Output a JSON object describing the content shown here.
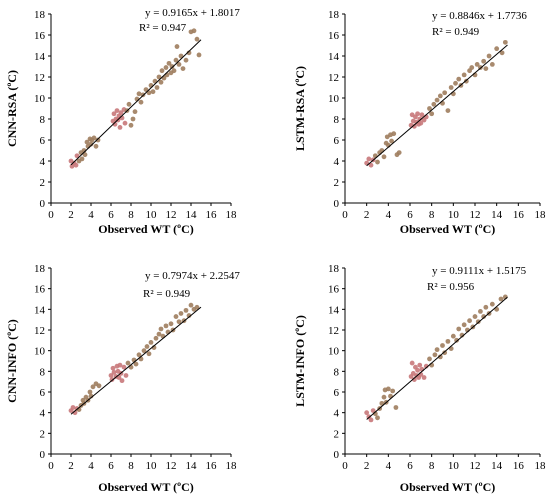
{
  "chart_data": [
    {
      "type": "scatter",
      "ylabel": "CNN-RSA (ºC)",
      "xlabel": "Observed WT (ºC)",
      "equation": "y = 0.9165x + 1.8017",
      "r2": "R² = 0.947",
      "slope": 0.9165,
      "intercept": 1.8017,
      "xlim": [
        0,
        18
      ],
      "ylim": [
        0,
        18
      ],
      "x_ticks": [
        "0",
        "2",
        "4",
        "6",
        "8",
        "10",
        "12",
        "14",
        "16",
        "18"
      ],
      "y_ticks": [
        "0",
        "2",
        "4",
        "6",
        "8",
        "10",
        "12",
        "14",
        "16",
        "18"
      ],
      "points": [
        [
          2.0,
          4.0
        ],
        [
          2.1,
          3.5
        ],
        [
          2.3,
          3.8
        ],
        [
          2.5,
          3.6
        ],
        [
          2.6,
          4.5
        ],
        [
          2.8,
          4.0
        ],
        [
          3.0,
          4.8
        ],
        [
          3.1,
          4.2
        ],
        [
          3.3,
          5.0
        ],
        [
          3.4,
          4.6
        ],
        [
          3.6,
          5.8
        ],
        [
          3.7,
          5.4
        ],
        [
          3.9,
          6.1
        ],
        [
          4.0,
          5.6
        ],
        [
          4.1,
          6.0
        ],
        [
          4.3,
          6.2
        ],
        [
          4.5,
          5.4
        ],
        [
          4.7,
          6.0
        ],
        [
          6.2,
          7.8
        ],
        [
          6.3,
          8.5
        ],
        [
          6.4,
          7.5
        ],
        [
          6.5,
          8.0
        ],
        [
          6.6,
          8.8
        ],
        [
          6.7,
          7.9
        ],
        [
          6.8,
          8.3
        ],
        [
          6.9,
          7.2
        ],
        [
          7.0,
          8.6
        ],
        [
          7.1,
          8.1
        ],
        [
          7.3,
          8.9
        ],
        [
          7.4,
          7.6
        ],
        [
          7.6,
          8.8
        ],
        [
          7.8,
          9.4
        ],
        [
          8.0,
          7.4
        ],
        [
          8.2,
          8.0
        ],
        [
          8.4,
          8.7
        ],
        [
          8.6,
          9.9
        ],
        [
          8.8,
          10.4
        ],
        [
          9.0,
          9.6
        ],
        [
          9.2,
          10.3
        ],
        [
          9.5,
          10.8
        ],
        [
          9.8,
          10.5
        ],
        [
          10.0,
          11.2
        ],
        [
          10.2,
          10.6
        ],
        [
          10.4,
          11.6
        ],
        [
          10.6,
          11.0
        ],
        [
          10.8,
          12.0
        ],
        [
          11.0,
          11.5
        ],
        [
          11.1,
          12.6
        ],
        [
          11.3,
          11.9
        ],
        [
          11.5,
          12.9
        ],
        [
          11.6,
          12.2
        ],
        [
          11.8,
          13.3
        ],
        [
          12.0,
          12.4
        ],
        [
          12.1,
          13.0
        ],
        [
          12.3,
          12.6
        ],
        [
          12.5,
          13.6
        ],
        [
          12.6,
          14.9
        ],
        [
          12.8,
          13.2
        ],
        [
          13.0,
          14.0
        ],
        [
          13.2,
          12.8
        ],
        [
          13.5,
          13.6
        ],
        [
          13.8,
          14.3
        ],
        [
          14.0,
          16.3
        ],
        [
          14.3,
          16.4
        ],
        [
          14.6,
          15.6
        ],
        [
          14.8,
          14.1
        ]
      ]
    },
    {
      "type": "scatter",
      "ylabel": "LSTM-RSA (ºC)",
      "xlabel": "Observed WT (ºC)",
      "equation": "y = 0.8846x + 1.7736",
      "r2": "R² = 0.949",
      "slope": 0.8846,
      "intercept": 1.7736,
      "xlim": [
        0,
        18
      ],
      "ylim": [
        0,
        18
      ],
      "x_ticks": [
        "0",
        "2",
        "4",
        "6",
        "8",
        "10",
        "12",
        "14",
        "16",
        "18"
      ],
      "y_ticks": [
        "0",
        "2",
        "4",
        "6",
        "8",
        "10",
        "12",
        "14",
        "16",
        "18"
      ],
      "points": [
        [
          2.0,
          3.8
        ],
        [
          2.2,
          4.2
        ],
        [
          2.4,
          3.6
        ],
        [
          2.6,
          4.1
        ],
        [
          2.8,
          4.5
        ],
        [
          3.0,
          3.9
        ],
        [
          3.2,
          4.8
        ],
        [
          3.4,
          5.0
        ],
        [
          3.6,
          4.4
        ],
        [
          3.8,
          5.7
        ],
        [
          3.9,
          6.3
        ],
        [
          4.0,
          5.5
        ],
        [
          4.2,
          6.5
        ],
        [
          4.3,
          5.9
        ],
        [
          4.5,
          6.6
        ],
        [
          4.8,
          4.6
        ],
        [
          5.0,
          4.8
        ],
        [
          6.1,
          7.4
        ],
        [
          6.2,
          8.4
        ],
        [
          6.3,
          7.8
        ],
        [
          6.4,
          7.3
        ],
        [
          6.5,
          8.2
        ],
        [
          6.6,
          7.7
        ],
        [
          6.7,
          8.5
        ],
        [
          6.8,
          7.5
        ],
        [
          6.9,
          8.0
        ],
        [
          7.0,
          7.6
        ],
        [
          7.1,
          8.4
        ],
        [
          7.3,
          7.9
        ],
        [
          7.5,
          8.2
        ],
        [
          7.8,
          9.0
        ],
        [
          8.0,
          8.5
        ],
        [
          8.2,
          9.4
        ],
        [
          8.5,
          9.8
        ],
        [
          8.8,
          10.2
        ],
        [
          9.0,
          9.5
        ],
        [
          9.2,
          10.5
        ],
        [
          9.5,
          8.8
        ],
        [
          9.8,
          11.0
        ],
        [
          10.0,
          10.4
        ],
        [
          10.2,
          11.4
        ],
        [
          10.5,
          11.8
        ],
        [
          10.7,
          11.2
        ],
        [
          11.0,
          12.2
        ],
        [
          11.2,
          11.6
        ],
        [
          11.5,
          12.6
        ],
        [
          11.7,
          12.9
        ],
        [
          12.0,
          12.2
        ],
        [
          12.2,
          13.2
        ],
        [
          12.5,
          12.9
        ],
        [
          12.8,
          13.5
        ],
        [
          13.0,
          12.8
        ],
        [
          13.3,
          14.0
        ],
        [
          13.6,
          13.2
        ],
        [
          14.0,
          14.7
        ],
        [
          14.5,
          14.3
        ],
        [
          14.8,
          15.3
        ]
      ]
    },
    {
      "type": "scatter",
      "ylabel": "CNN-INFO (ºC)",
      "xlabel": "Observed WT (ºC)",
      "equation": "y = 0.7974x + 2.2547",
      "r2": "R² = 0.949",
      "slope": 0.7974,
      "intercept": 2.2547,
      "xlim": [
        0,
        18
      ],
      "ylim": [
        0,
        18
      ],
      "x_ticks": [
        "0",
        "2",
        "4",
        "6",
        "8",
        "10",
        "12",
        "14",
        "16",
        "18"
      ],
      "y_ticks": [
        "0",
        "2",
        "4",
        "6",
        "8",
        "10",
        "12",
        "14",
        "16",
        "18"
      ],
      "points": [
        [
          2.0,
          4.2
        ],
        [
          2.2,
          4.5
        ],
        [
          2.4,
          4.0
        ],
        [
          2.6,
          4.4
        ],
        [
          2.8,
          4.3
        ],
        [
          3.0,
          4.7
        ],
        [
          3.2,
          5.2
        ],
        [
          3.3,
          4.9
        ],
        [
          3.5,
          5.5
        ],
        [
          3.7,
          5.2
        ],
        [
          3.9,
          6.0
        ],
        [
          4.0,
          5.6
        ],
        [
          4.2,
          6.5
        ],
        [
          4.5,
          6.8
        ],
        [
          4.8,
          6.6
        ],
        [
          6.0,
          7.6
        ],
        [
          6.1,
          7.2
        ],
        [
          6.2,
          8.3
        ],
        [
          6.3,
          7.9
        ],
        [
          6.5,
          7.5
        ],
        [
          6.6,
          8.5
        ],
        [
          6.7,
          8.0
        ],
        [
          6.8,
          7.4
        ],
        [
          6.9,
          8.6
        ],
        [
          7.0,
          7.8
        ],
        [
          7.1,
          7.1
        ],
        [
          7.3,
          8.4
        ],
        [
          7.5,
          7.6
        ],
        [
          7.7,
          8.8
        ],
        [
          8.0,
          8.4
        ],
        [
          8.3,
          9.1
        ],
        [
          8.5,
          8.7
        ],
        [
          8.8,
          9.6
        ],
        [
          9.0,
          9.2
        ],
        [
          9.3,
          10.0
        ],
        [
          9.6,
          10.4
        ],
        [
          9.8,
          9.7
        ],
        [
          10.0,
          10.8
        ],
        [
          10.3,
          10.3
        ],
        [
          10.5,
          11.2
        ],
        [
          10.8,
          11.6
        ],
        [
          11.0,
          12.1
        ],
        [
          11.2,
          11.4
        ],
        [
          11.5,
          12.4
        ],
        [
          11.7,
          11.8
        ],
        [
          12.0,
          12.6
        ],
        [
          12.2,
          12.0
        ],
        [
          12.5,
          13.3
        ],
        [
          12.8,
          12.8
        ],
        [
          13.0,
          13.6
        ],
        [
          13.3,
          12.9
        ],
        [
          13.5,
          13.9
        ],
        [
          13.8,
          13.4
        ],
        [
          14.0,
          14.4
        ],
        [
          14.3,
          14.0
        ],
        [
          14.6,
          14.2
        ]
      ]
    },
    {
      "type": "scatter",
      "ylabel": "LSTM-INFO (ºC)",
      "xlabel": "Observed WT (ºC)",
      "equation": "y = 0.9111x + 1.5175",
      "r2": "R² = 0.956",
      "slope": 0.9111,
      "intercept": 1.5175,
      "xlim": [
        0,
        18
      ],
      "ylim": [
        0,
        18
      ],
      "x_ticks": [
        "0",
        "2",
        "4",
        "6",
        "8",
        "10",
        "12",
        "14",
        "16",
        "18"
      ],
      "y_ticks": [
        "0",
        "2",
        "4",
        "6",
        "8",
        "10",
        "12",
        "14",
        "16",
        "18"
      ],
      "points": [
        [
          2.0,
          4.0
        ],
        [
          2.2,
          3.6
        ],
        [
          2.4,
          3.3
        ],
        [
          2.6,
          4.2
        ],
        [
          2.8,
          3.9
        ],
        [
          3.0,
          3.5
        ],
        [
          3.2,
          4.4
        ],
        [
          3.4,
          4.9
        ],
        [
          3.6,
          5.5
        ],
        [
          3.7,
          6.2
        ],
        [
          3.8,
          5.0
        ],
        [
          4.0,
          6.3
        ],
        [
          4.2,
          5.6
        ],
        [
          4.4,
          6.1
        ],
        [
          4.7,
          4.5
        ],
        [
          6.1,
          7.5
        ],
        [
          6.2,
          8.8
        ],
        [
          6.3,
          7.8
        ],
        [
          6.4,
          7.2
        ],
        [
          6.5,
          8.4
        ],
        [
          6.6,
          7.6
        ],
        [
          6.7,
          8.1
        ],
        [
          6.8,
          7.4
        ],
        [
          6.9,
          8.6
        ],
        [
          7.0,
          7.7
        ],
        [
          7.1,
          8.2
        ],
        [
          7.3,
          7.4
        ],
        [
          7.5,
          8.5
        ],
        [
          7.8,
          9.2
        ],
        [
          8.0,
          8.6
        ],
        [
          8.3,
          9.6
        ],
        [
          8.5,
          10.1
        ],
        [
          8.8,
          9.4
        ],
        [
          9.0,
          10.5
        ],
        [
          9.2,
          9.8
        ],
        [
          9.5,
          10.9
        ],
        [
          9.8,
          10.2
        ],
        [
          10.0,
          11.4
        ],
        [
          10.3,
          11.0
        ],
        [
          10.5,
          12.1
        ],
        [
          10.8,
          11.5
        ],
        [
          11.0,
          12.5
        ],
        [
          11.3,
          12.0
        ],
        [
          11.5,
          12.9
        ],
        [
          11.8,
          12.3
        ],
        [
          12.0,
          13.3
        ],
        [
          12.3,
          12.8
        ],
        [
          12.5,
          13.8
        ],
        [
          12.8,
          13.3
        ],
        [
          13.0,
          14.2
        ],
        [
          13.3,
          13.6
        ],
        [
          13.6,
          14.5
        ],
        [
          14.0,
          14.0
        ],
        [
          14.4,
          15.0
        ],
        [
          14.8,
          15.2
        ]
      ]
    }
  ],
  "colors": {
    "marker": "#9e7d5e",
    "marker_red": "#c8787a",
    "line": "#000000",
    "axis": "#000000"
  }
}
